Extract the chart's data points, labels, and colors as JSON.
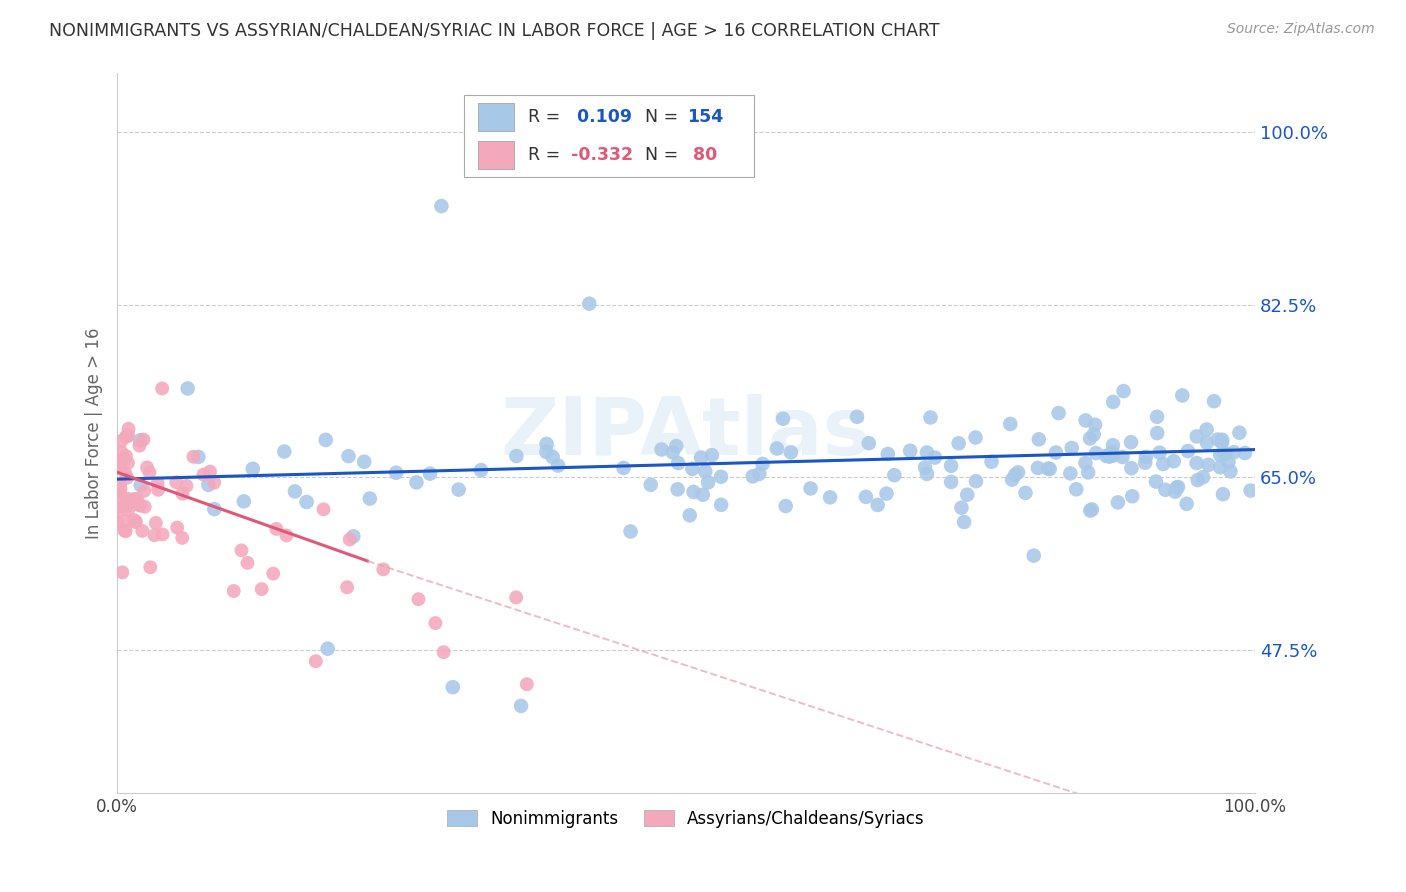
{
  "title": "NONIMMIGRANTS VS ASSYRIAN/CHALDEAN/SYRIAC IN LABOR FORCE | AGE > 16 CORRELATION CHART",
  "source": "Source: ZipAtlas.com",
  "ylabel": "In Labor Force | Age > 16",
  "xlim": [
    0.0,
    1.0
  ],
  "ylim": [
    0.33,
    1.06
  ],
  "yticks": [
    0.475,
    0.65,
    0.825,
    1.0
  ],
  "ytick_labels": [
    "47.5%",
    "65.0%",
    "82.5%",
    "100.0%"
  ],
  "blue_R": 0.109,
  "blue_N": 154,
  "pink_R": -0.332,
  "pink_N": 80,
  "blue_color": "#a8c8e8",
  "pink_color": "#f4a8bc",
  "blue_line_color": "#1a56c4",
  "pink_line_color": "#e05878",
  "pink_line_dash_color": "#e8a0b0",
  "background_color": "#ffffff",
  "grid_color": "#cccccc",
  "title_color": "#333333",
  "axis_label_color": "#666666",
  "ytick_color": "#1a56c4",
  "watermark": "ZIPAtlas",
  "legend_label1": "Nonimmigrants",
  "legend_label2": "Assyrians/Chaldeans/Syriacs"
}
